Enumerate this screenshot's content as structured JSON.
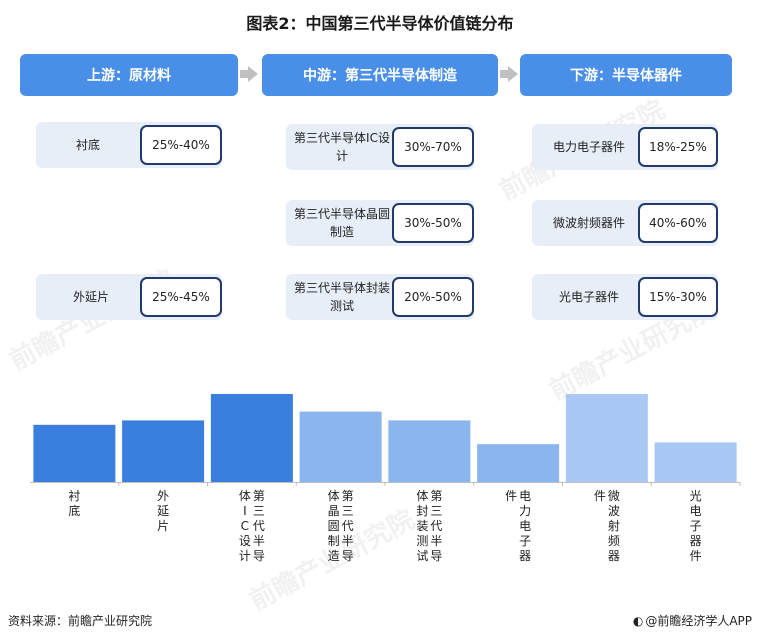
{
  "title": "图表2：中国第三代半导体价值链分布",
  "stages": {
    "upstream": "上游：原材料",
    "midstream": "中游：第三代半导体制造",
    "downstream": "下游：半导体器件"
  },
  "items": {
    "substrate": {
      "label": "衬底",
      "pct": "25%-40%"
    },
    "epitaxy": {
      "label": "外延片",
      "pct": "25%-45%"
    },
    "ic_design": {
      "label": "第三代半导体IC设计",
      "pct": "30%-70%"
    },
    "wafer": {
      "label": "第三代半导体晶圆制造",
      "pct": "30%-50%"
    },
    "packaging": {
      "label": "第三代半导体封装测试",
      "pct": "20%-50%"
    },
    "power": {
      "label": "电力电子器件",
      "pct": "18%-25%"
    },
    "rf": {
      "label": "微波射频器件",
      "pct": "40%-60%"
    },
    "opto": {
      "label": "光电子器件",
      "pct": "15%-30%"
    }
  },
  "chart_data": {
    "type": "bar",
    "categories": [
      "衬底",
      "外延片",
      "第三代半导体IC设计",
      "第三代半导体晶圆制造",
      "第三代半导体封装测试",
      "电力电子器件",
      "微波射频器件",
      "光电子器件"
    ],
    "values": [
      32.5,
      35,
      50,
      40,
      35,
      21.5,
      50,
      22.5
    ],
    "ylim": [
      0,
      50
    ],
    "grid": false,
    "colors": [
      "#3a7fde",
      "#3a7fde",
      "#3a7fde",
      "#8ab5ef",
      "#8ab5ef",
      "#8ab5ef",
      "#a9c9f4",
      "#a9c9f4"
    ]
  },
  "footer": {
    "source": "资料来源：前瞻产业研究院",
    "credit": "@前瞻经济学人APP"
  },
  "watermark": "前瞻产业研究院",
  "colors": {
    "accent": "#4a8fe7",
    "card_bg": "#e8eef8",
    "pct_border": "#1f3a6b"
  }
}
